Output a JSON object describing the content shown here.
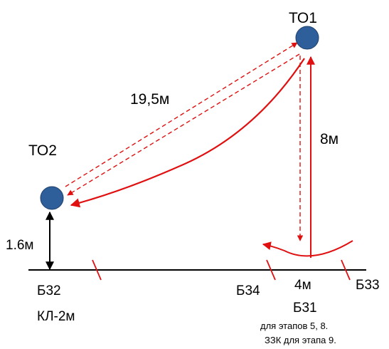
{
  "colors": {
    "node": "#2f5f9a",
    "node_stroke": "#1f3f6a",
    "route": "#e01010",
    "line": "#000000"
  },
  "nodes": {
    "to1": {
      "label": "ТО1"
    },
    "to2": {
      "label": "ТО2"
    }
  },
  "dimensions": {
    "diagonal": "19,5м",
    "vertical": "8м",
    "height": "1.6м",
    "segment": "4м"
  },
  "markers": {
    "b32": "Б32",
    "b34": "Б34",
    "b33": "Б33",
    "b31": "Б31"
  },
  "notes": {
    "cable": "КЛ-2м",
    "stages_line1": "для этапов 5, 8.",
    "stages_line2": "ЗЗК для этапа 9."
  }
}
